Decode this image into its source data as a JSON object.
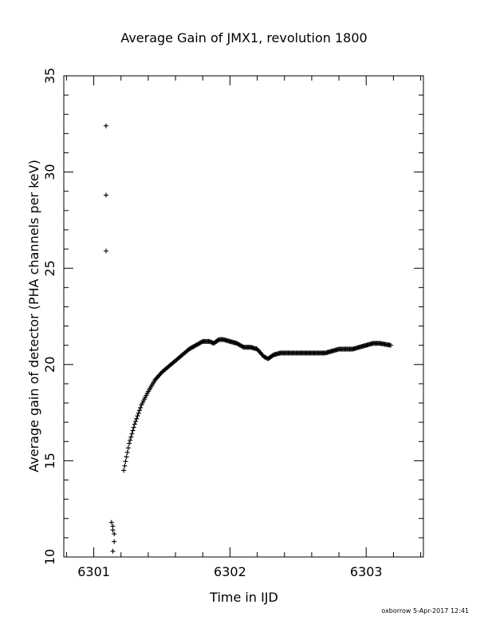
{
  "chart_data": {
    "type": "scatter",
    "title": "Average Gain of JMX1, revolution 1800",
    "xlabel": "Time in IJD",
    "ylabel": "Average gain of detector (PHA channels per keV)",
    "xlim": [
      6300.78,
      6303.42
    ],
    "ylim": [
      10,
      35
    ],
    "x_ticks": [
      6301,
      6302,
      6303
    ],
    "y_ticks": [
      10,
      15,
      20,
      25,
      30,
      35
    ],
    "marker": "+",
    "grid": false,
    "legend": "none",
    "outliers": {
      "x": [
        6301.09,
        6301.09,
        6301.09,
        6301.13,
        6301.14,
        6301.14,
        6301.15,
        6301.15,
        6301.14
      ],
      "y": [
        32.4,
        28.8,
        25.9,
        11.8,
        11.6,
        11.4,
        11.2,
        10.8,
        10.3
      ]
    },
    "series": [
      {
        "x": [
          6301.22,
          6301.26,
          6301.3,
          6301.35,
          6301.4,
          6301.45,
          6301.5,
          6301.55,
          6301.6,
          6301.65,
          6301.7,
          6301.75,
          6301.8,
          6301.85,
          6301.88,
          6301.92,
          6301.95,
          6302.0,
          6302.05,
          6302.1,
          6302.15,
          6302.2,
          6302.25,
          6302.28,
          6302.32,
          6302.37,
          6302.42,
          6302.5,
          6302.6,
          6302.7,
          6302.75,
          6302.8,
          6302.9,
          6302.95,
          6303.0,
          6303.05,
          6303.1,
          6303.18
        ],
        "y": [
          14.5,
          15.9,
          16.9,
          17.9,
          18.6,
          19.2,
          19.6,
          19.9,
          20.2,
          20.5,
          20.8,
          21.0,
          21.2,
          21.2,
          21.1,
          21.3,
          21.3,
          21.2,
          21.1,
          20.9,
          20.9,
          20.8,
          20.4,
          20.3,
          20.5,
          20.6,
          20.6,
          20.6,
          20.6,
          20.6,
          20.7,
          20.8,
          20.8,
          20.9,
          21.0,
          21.1,
          21.1,
          21.0
        ]
      }
    ]
  },
  "footer": {
    "stamp": "oxborrow  5-Apr-2017 12:41"
  }
}
